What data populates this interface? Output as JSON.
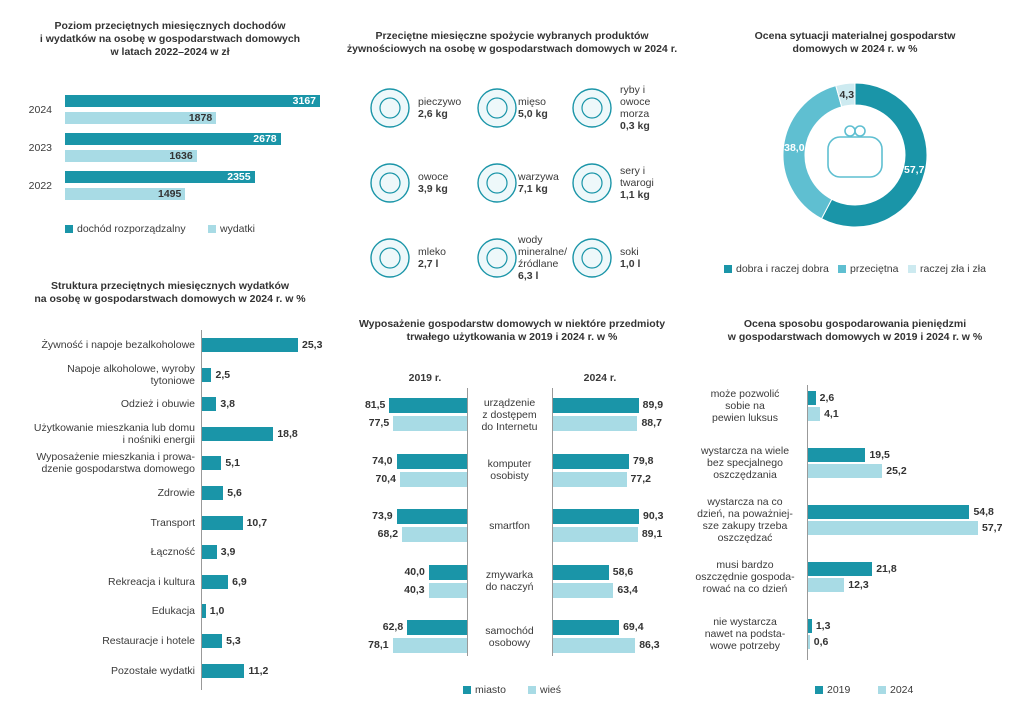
{
  "chart_data": [
    {
      "type": "bar",
      "title": "Poziom przeciętnych miesięcznych dochodów\ni wydatków na osobę w gospodarstwach domowych\nw latach 2022–2024 w zł",
      "categories": [
        "2024",
        "2023",
        "2022"
      ],
      "series": [
        {
          "name": "dochód rozporządzalny",
          "color": "#1a95a8",
          "values": [
            3167,
            2678,
            2355
          ]
        },
        {
          "name": "wydatki",
          "color": "#a8dbe5",
          "values": [
            1878,
            1636,
            1495
          ]
        }
      ],
      "legend": "bottom"
    },
    {
      "type": "pictogram",
      "title": "Przeciętne miesięczne spożycie wybranych produktów\nżywnościowych na osobę w gospodarstwach domowych w 2024 r.",
      "categories": [
        "pieczywo",
        "mięso",
        "ryby i\nowoce\nmorza",
        "owoce",
        "warzywa",
        "sery i\ntwarogi",
        "mleko",
        "wody\nmineralne/\nźródlane",
        "soki"
      ],
      "values": [
        2.6,
        5.0,
        0.3,
        3.9,
        7.1,
        1.1,
        2.7,
        6.3,
        1.0
      ],
      "value_labels": [
        "2,6 kg",
        "5,0 kg",
        "0,3 kg",
        "3,9 kg",
        "7,1 kg",
        "1,1 kg",
        "2,7 l",
        "6,3 l",
        "1,0 l"
      ],
      "color": "#1a95a8"
    },
    {
      "type": "donut",
      "title": "Ocena sytuacji materialnej gospodarstw\ndomowych w 2024 r. w %",
      "categories": [
        "dobra i raczej dobra",
        "przeciętna",
        "raczej zła i zła"
      ],
      "values": [
        57.7,
        38.0,
        4.3
      ],
      "value_labels": [
        "57,7",
        "38,0",
        "4,3"
      ],
      "colors": [
        "#1a95a8",
        "#5fbfd1",
        "#cdeaf0"
      ],
      "legend": "bottom"
    },
    {
      "type": "bar",
      "title": "Struktura przeciętnych miesięcznych wydatków\nna osobę w gospodarstwach domowych w 2024 r. w %",
      "categories": [
        "Żywność i napoje bezalkoholowe",
        "Napoje alkoholowe, wyroby\ntytoniowe",
        "Odzież i obuwie",
        "Użytkowanie mieszkania lub domu\ni nośniki energii",
        "Wyposażenie mieszkania i prowa-\ndzenie gospodarstwa domowego",
        "Zdrowie",
        "Transport",
        "Łączność",
        "Rekreacja i kultura",
        "Edukacja",
        "Restauracje i hotele",
        "Pozostałe wydatki"
      ],
      "values": [
        25.3,
        2.5,
        3.8,
        18.8,
        5.1,
        5.6,
        10.7,
        3.9,
        6.9,
        1.0,
        5.3,
        11.2
      ],
      "value_labels": [
        "25,3",
        "2,5",
        "3,8",
        "18,8",
        "5,1",
        "5,6",
        "10,7",
        "3,9",
        "6,9",
        "1,0",
        "5,3",
        "11,2"
      ],
      "color": "#1a95a8"
    },
    {
      "type": "butterfly",
      "title": "Wyposażenie gospodarstw domowych w niektóre przedmioty\ntrwałego użytkowania w 2019 i 2024 r. w %",
      "panels": [
        "2019 r.",
        "2024 r."
      ],
      "categories": [
        "urządzenie\nz dostępem\ndo Internetu",
        "komputer\nosobisty",
        "smartfon",
        "zmywarka\ndo naczyń",
        "samochód\nosobowy"
      ],
      "series": [
        {
          "name": "miasto",
          "color": "#1a95a8",
          "values": [
            [
              81.5,
              74.0,
              73.9,
              40.0,
              62.8
            ],
            [
              89.9,
              79.8,
              90.3,
              58.6,
              69.4
            ]
          ],
          "value_labels": [
            [
              "81,5",
              "74,0",
              "73,9",
              "40,0",
              "62,8"
            ],
            [
              "89,9",
              "79,8",
              "90,3",
              "58,6",
              "69,4"
            ]
          ]
        },
        {
          "name": "wieś",
          "color": "#a8dbe5",
          "values": [
            [
              77.5,
              70.4,
              68.2,
              40.3,
              78.1
            ],
            [
              88.7,
              77.2,
              89.1,
              63.4,
              86.3
            ]
          ],
          "value_labels": [
            [
              "77,5",
              "70,4",
              "68,2",
              "40,3",
              "78,1"
            ],
            [
              "88,7",
              "77,2",
              "89,1",
              "63,4",
              "86,3"
            ]
          ]
        }
      ],
      "legend": "bottom"
    },
    {
      "type": "bar",
      "title": "Ocena sposobu gospodarowania pieniędzmi\nw gospodarstwach domowych w 2019 i 2024 r. w %",
      "categories": [
        "może pozwolić\nsobie na\npewien luksus",
        "wystarcza na wiele\nbez specjalnego\noszczędzania",
        "wystarcza na co\ndzień, na poważniej-\nsze zakupy trzeba\noszczędzać",
        "musi bardzo\noszczędnie gospoda-\nrować na co dzień",
        "nie wystarcza\nnawet na podsta-\nwowe potrzeby"
      ],
      "series": [
        {
          "name": "2019",
          "color": "#1a95a8",
          "values": [
            2.6,
            19.5,
            54.8,
            21.8,
            1.3
          ],
          "value_labels": [
            "2,6",
            "19,5",
            "54,8",
            "21,8",
            "1,3"
          ]
        },
        {
          "name": "2024",
          "color": "#a8dbe5",
          "values": [
            4.1,
            25.2,
            57.7,
            12.3,
            0.6
          ],
          "value_labels": [
            "4,1",
            "25,2",
            "57,7",
            "12,3",
            "0,6"
          ]
        }
      ],
      "legend": "bottom"
    }
  ]
}
